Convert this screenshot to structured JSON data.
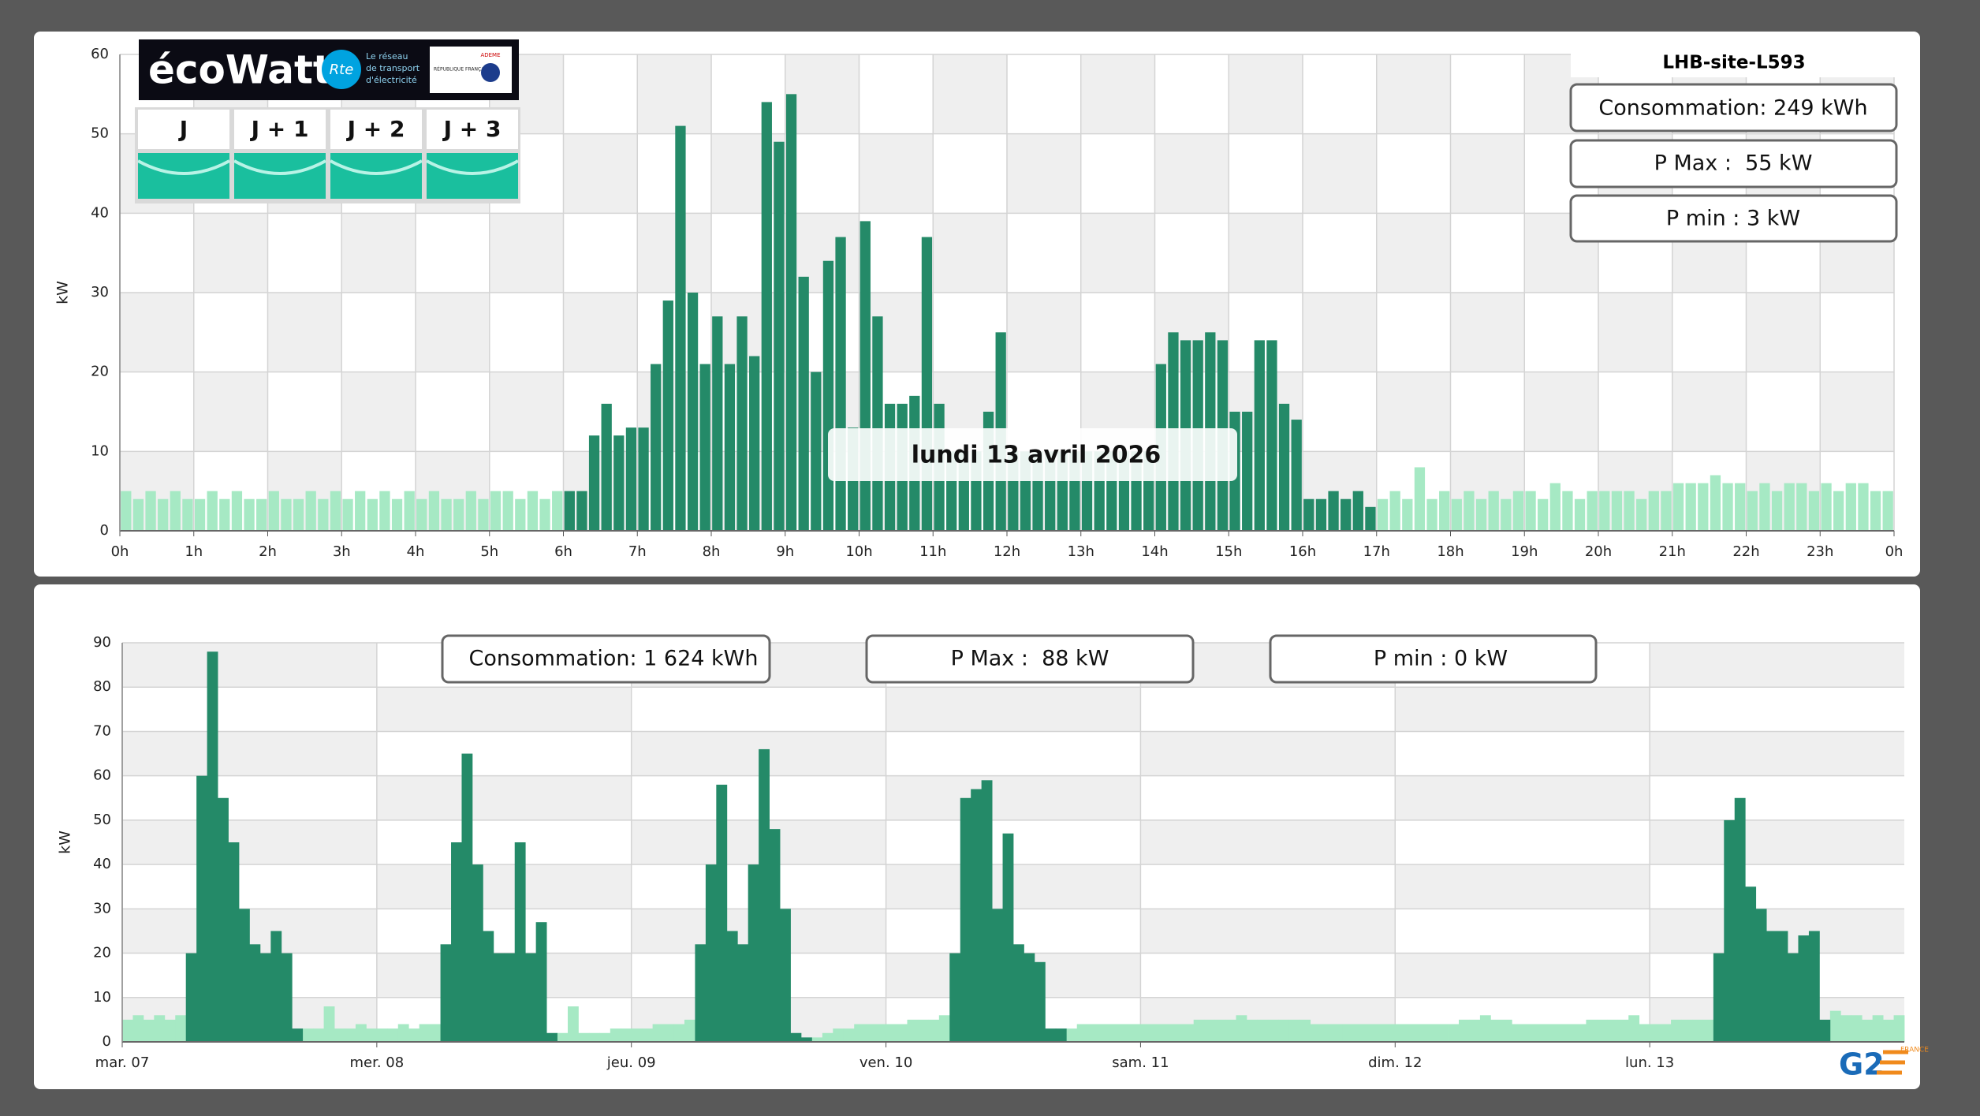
{
  "chart_data": [
    {
      "type": "bar",
      "ylabel": "kW",
      "site": "LHB-site-L593",
      "date_label": "lundi 13 avril 2026",
      "stats": [
        "Consommation: 249 kWh",
        "P Max :  55 kW",
        "P min : 3 kW"
      ],
      "ylim": [
        0,
        60
      ],
      "yticks": [
        0,
        10,
        20,
        30,
        40,
        50,
        60
      ],
      "grid": true,
      "x_labels": [
        "0h",
        "1h",
        "2h",
        "3h",
        "4h",
        "5h",
        "6h",
        "7h",
        "8h",
        "9h",
        "10h",
        "11h",
        "12h",
        "13h",
        "14h",
        "15h",
        "16h",
        "17h",
        "18h",
        "19h",
        "20h",
        "21h",
        "22h",
        "23h",
        "0h"
      ],
      "series": [
        {
          "color": "#a6e9c4",
          "values": [
            5,
            4,
            5,
            4,
            5,
            4,
            4,
            5,
            4,
            5,
            4,
            4,
            5,
            4,
            4,
            5,
            4,
            5,
            4,
            5,
            4,
            5,
            4,
            5,
            4,
            5,
            4,
            4,
            5,
            4,
            5,
            5,
            4,
            5,
            4,
            5,
            null,
            null,
            null,
            null,
            null,
            null,
            null,
            null,
            null,
            null,
            null,
            null,
            null,
            null,
            null,
            null,
            null,
            null,
            null,
            null,
            null,
            null,
            null,
            null,
            null,
            null,
            null,
            null,
            null,
            null,
            null,
            null,
            null,
            null,
            null,
            null,
            null,
            null,
            null,
            null,
            null,
            null,
            null,
            null,
            null,
            null,
            null,
            null,
            null,
            null,
            null,
            null,
            null,
            null,
            null,
            null,
            null,
            null,
            null,
            null,
            null,
            null,
            null,
            null,
            null,
            null,
            4,
            5,
            4,
            8,
            4,
            5,
            4,
            5,
            4,
            5,
            4,
            5,
            5,
            4,
            6,
            5,
            4,
            5,
            5,
            5,
            5,
            4,
            5,
            5,
            6,
            6,
            6,
            7,
            6,
            6,
            5,
            6,
            5,
            6,
            6,
            5,
            6,
            5,
            6,
            6,
            5,
            5
          ]
        },
        {
          "color": "#248a68",
          "values": [
            null,
            null,
            null,
            null,
            null,
            null,
            null,
            null,
            null,
            null,
            null,
            null,
            null,
            null,
            null,
            null,
            null,
            null,
            null,
            null,
            null,
            null,
            null,
            null,
            null,
            null,
            null,
            null,
            null,
            null,
            null,
            null,
            null,
            null,
            null,
            null,
            5,
            5,
            12,
            16,
            12,
            13,
            13,
            21,
            29,
            51,
            30,
            21,
            27,
            21,
            27,
            22,
            54,
            49,
            55,
            32,
            20,
            34,
            37,
            13,
            39,
            27,
            16,
            16,
            17,
            37,
            16,
            10,
            10,
            10,
            15,
            25,
            10,
            10,
            10,
            10,
            10,
            10,
            10,
            10,
            10,
            10,
            10,
            10,
            21,
            25,
            24,
            24,
            25,
            24,
            15,
            15,
            24,
            24,
            16,
            14,
            4,
            4,
            5,
            4,
            5,
            3,
            null,
            null,
            null,
            null,
            null,
            null,
            null,
            null,
            null,
            null,
            null,
            null,
            null,
            null,
            null,
            null,
            null,
            null,
            null,
            null,
            null,
            null,
            null,
            null,
            null,
            null,
            null,
            null,
            null,
            null,
            null,
            null,
            null,
            null,
            null,
            null,
            null,
            null,
            null,
            null,
            null,
            null
          ]
        }
      ]
    },
    {
      "type": "bar",
      "ylabel": "kW",
      "stats": [
        "Consommation: 1 624 kWh",
        "P Max :  88 kW",
        "P min : 0 kW"
      ],
      "ylim": [
        0,
        90
      ],
      "yticks": [
        0,
        10,
        20,
        30,
        40,
        50,
        60,
        70,
        80,
        90
      ],
      "grid": true,
      "x_labels": [
        "mar. 07",
        "mer. 08",
        "jeu. 09",
        "ven. 10",
        "sam. 11",
        "dim. 12",
        "lun. 13"
      ],
      "series": [
        {
          "color": "#a6e9c4",
          "values": [
            5,
            6,
            5,
            6,
            5,
            6,
            null,
            null,
            null,
            null,
            null,
            null,
            null,
            null,
            null,
            null,
            null,
            3,
            3,
            8,
            3,
            3,
            4,
            3,
            3,
            3,
            4,
            3,
            4,
            4,
            null,
            null,
            null,
            null,
            null,
            null,
            null,
            null,
            null,
            null,
            null,
            2,
            8,
            2,
            2,
            2,
            3,
            3,
            3,
            3,
            4,
            4,
            4,
            5,
            null,
            null,
            null,
            null,
            null,
            null,
            null,
            null,
            null,
            null,
            null,
            1,
            2,
            3,
            3,
            4,
            4,
            4,
            4,
            4,
            5,
            5,
            5,
            6,
            null,
            null,
            null,
            null,
            null,
            null,
            null,
            null,
            null,
            null,
            null,
            3,
            4,
            4,
            4,
            4,
            4,
            4,
            4,
            4,
            4,
            4,
            4,
            5,
            5,
            5,
            5,
            6,
            5,
            5,
            5,
            5,
            5,
            5,
            4,
            4,
            4,
            4,
            4,
            4,
            4,
            4,
            4,
            4,
            4,
            4,
            4,
            4,
            5,
            5,
            6,
            5,
            5,
            4,
            4,
            4,
            4,
            4,
            4,
            4,
            5,
            5,
            5,
            5,
            6,
            4,
            4,
            4,
            5,
            5,
            5,
            5,
            null,
            null,
            null,
            null,
            null,
            null,
            null,
            null,
            null,
            null,
            null,
            7,
            6,
            6,
            5,
            6,
            5,
            6
          ]
        },
        {
          "color": "#248a68",
          "values": [
            null,
            null,
            null,
            null,
            null,
            null,
            20,
            60,
            88,
            55,
            45,
            30,
            22,
            20,
            25,
            20,
            3,
            null,
            null,
            null,
            null,
            null,
            null,
            null,
            null,
            null,
            null,
            null,
            null,
            null,
            22,
            45,
            65,
            40,
            25,
            20,
            20,
            45,
            20,
            27,
            2,
            null,
            null,
            null,
            null,
            null,
            null,
            null,
            null,
            null,
            null,
            null,
            null,
            null,
            22,
            40,
            58,
            25,
            22,
            40,
            66,
            48,
            30,
            2,
            1,
            null,
            null,
            null,
            null,
            null,
            null,
            null,
            null,
            null,
            null,
            null,
            null,
            null,
            20,
            55,
            57,
            59,
            30,
            47,
            22,
            20,
            18,
            3,
            3,
            null,
            null,
            null,
            null,
            null,
            null,
            null,
            null,
            null,
            null,
            null,
            null,
            null,
            null,
            null,
            null,
            null,
            null,
            null,
            null,
            null,
            null,
            null,
            null,
            null,
            null,
            null,
            null,
            null,
            null,
            null,
            null,
            null,
            null,
            null,
            null,
            null,
            null,
            null,
            null,
            null,
            null,
            null,
            null,
            null,
            null,
            null,
            null,
            null,
            null,
            null,
            null,
            null,
            null,
            null,
            null,
            null,
            null,
            null,
            null,
            null,
            20,
            50,
            55,
            35,
            30,
            25,
            25,
            20,
            24,
            25,
            5,
            null,
            null,
            null,
            null,
            null,
            null,
            null
          ]
        }
      ]
    }
  ],
  "ecowatt": {
    "logo": "écoWatt",
    "rte": "Rte",
    "rte_text": [
      "Le réseau",
      "de transport",
      "d'électricité"
    ],
    "republique": "RÉPUBLIQUE FRANÇAISE",
    "ademe": "ADEME",
    "days": [
      "J",
      "J + 1",
      "J + 2",
      "J + 3"
    ]
  },
  "brand": {
    "logo": "G2",
    "country": "FRANCE"
  }
}
